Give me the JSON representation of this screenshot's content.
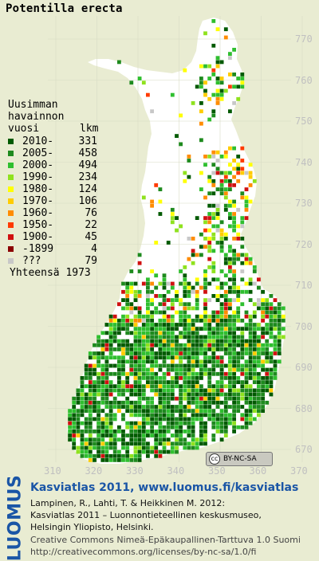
{
  "title": "Potentilla erecta",
  "legend": {
    "header": [
      "Uusimman",
      "havainnon",
      "vuosi",
      "lkm"
    ],
    "items": [
      {
        "year": "2010-",
        "count": "331",
        "color": "#005a00"
      },
      {
        "year": "2005-",
        "count": "458",
        "color": "#1e8a1e"
      },
      {
        "year": "2000-",
        "count": "494",
        "color": "#2fbf2f"
      },
      {
        "year": "1990-",
        "count": "234",
        "color": "#8fe21e"
      },
      {
        "year": "1980-",
        "count": "124",
        "color": "#ffff00"
      },
      {
        "year": "1970-",
        "count": "106",
        "color": "#ffcc00"
      },
      {
        "year": "1960-",
        "count": "76",
        "color": "#ff8c00"
      },
      {
        "year": "1950-",
        "count": "22",
        "color": "#ff3a00"
      },
      {
        "year": "1900-",
        "count": "45",
        "color": "#d01010"
      },
      {
        "year": "-1899",
        "count": "4",
        "color": "#8b0000"
      },
      {
        "year": "???",
        "count": "79",
        "color": "#c8c8c8"
      }
    ],
    "total_label": "Yhteensä 1973"
  },
  "axes": {
    "y_ticks": [
      "770",
      "760",
      "750",
      "740",
      "730",
      "720",
      "710",
      "700",
      "690",
      "680",
      "670"
    ],
    "x_ticks": [
      "310",
      "320",
      "330",
      "340",
      "350",
      "360",
      "370"
    ]
  },
  "badge": {
    "cc": "cc",
    "text": "BY-NC-SA"
  },
  "footer": {
    "logo": "LUOMUS",
    "link": "Kasviatlas 2011, www.luomus.fi/kasviatlas",
    "ref1": "Lampinen, R., Lahti, T. & Heikkinen M. 2012:",
    "ref2": "Kasviatlas 2011 – Luonnontieteellinen keskusmuseo,",
    "ref3": "Helsingin Yliopisto, Helsinki.",
    "license1": "Creative Commons Nimeä-Epäkaupallinen-Tarttuva 1.0 Suomi",
    "license2": "http://creativecommons.org/licenses/by-nc-sa/1.0/fi"
  }
}
